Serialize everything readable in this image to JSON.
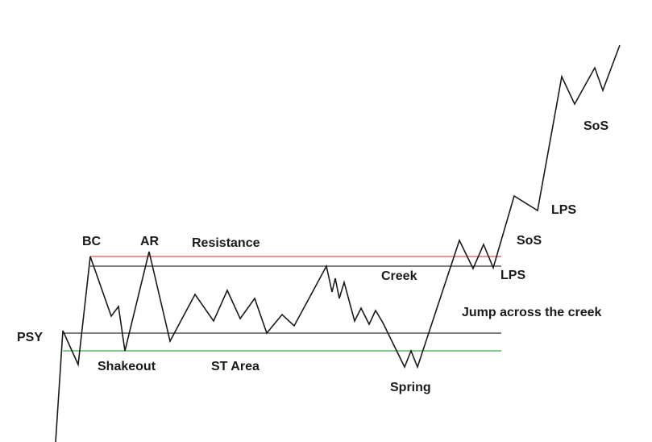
{
  "labels": {
    "psy": "PSY",
    "bc": "BC",
    "ar": "AR",
    "resistance": "Resistance",
    "creek": "Creek",
    "shakeout": "Shakeout",
    "st_area": "ST Area",
    "spring": "Spring",
    "lps_low": "LPS",
    "jump": "Jump across the creek",
    "sos_low": "SoS",
    "lps_high": "LPS",
    "sos_high": "SoS"
  },
  "colors": {
    "price_line": "#1a1a1a",
    "resistance_line": "#e05050",
    "creek_line": "#333333",
    "support_line": "#333333",
    "lower_support_line": "#3aa84a"
  }
}
